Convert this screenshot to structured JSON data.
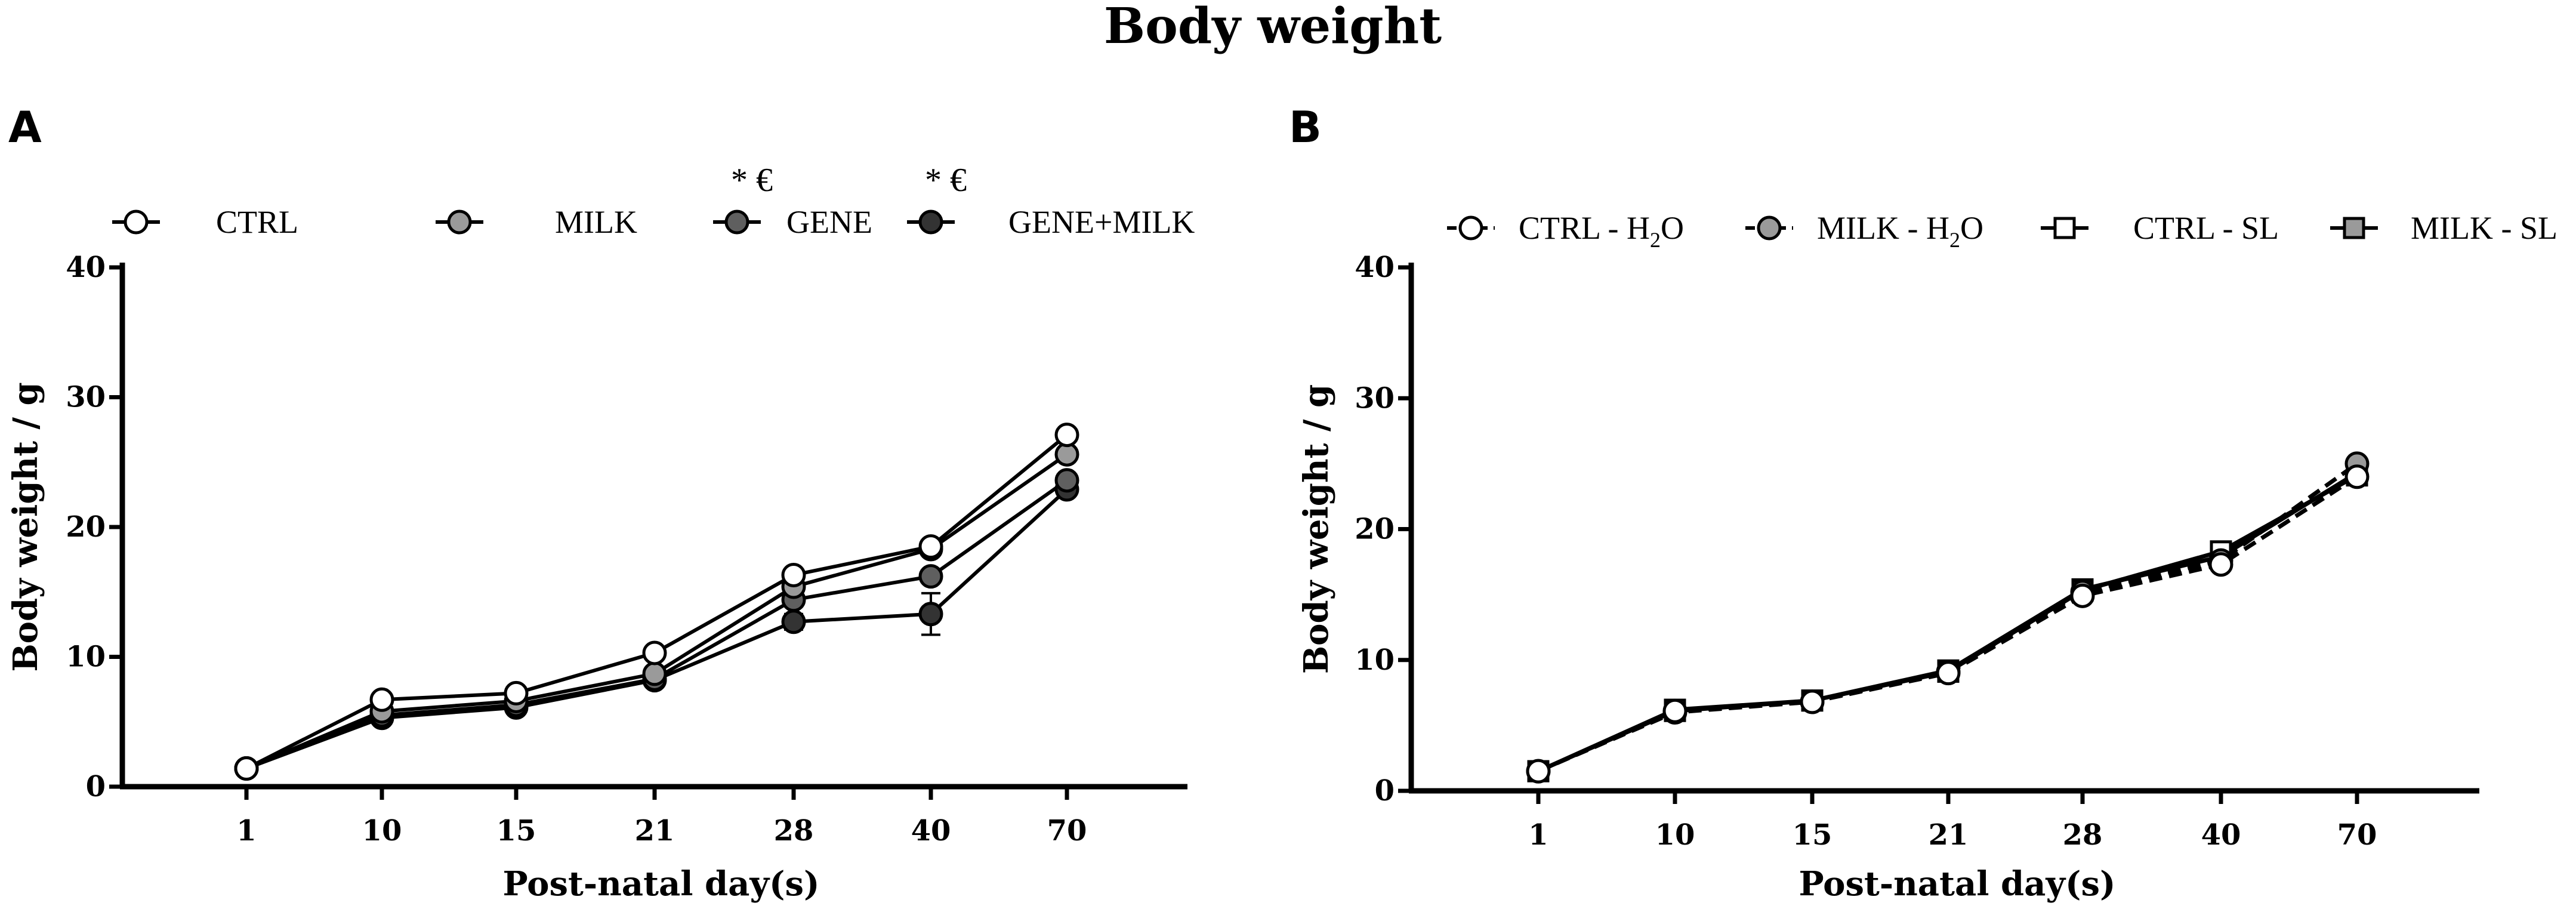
{
  "figure_title": "Body weight",
  "chart_data": [
    {
      "panel": "A",
      "type": "line",
      "categories": [
        "1",
        "10",
        "15",
        "21",
        "28",
        "40",
        "70"
      ],
      "xlabel": "Post-natal day(s)",
      "ylabel": "Body weight / g",
      "ylim": [
        0,
        40
      ],
      "yticks": [
        "0",
        "10",
        "20",
        "30",
        "40"
      ],
      "legend_position": "top",
      "series": [
        {
          "name": "CTRL",
          "marker": "circle",
          "fill": "#ffffff",
          "dashed": false,
          "significance": "",
          "values": [
            1.4,
            6.7,
            7.2,
            10.3,
            16.3,
            18.5,
            27.1
          ]
        },
        {
          "name": "MILK",
          "marker": "circle",
          "fill": "#9a9a9a",
          "dashed": false,
          "significance": "",
          "values": [
            1.4,
            5.8,
            6.6,
            8.7,
            15.4,
            18.3,
            25.6
          ]
        },
        {
          "name": "GENE",
          "marker": "circle",
          "fill": "#5f5f5f",
          "dashed": false,
          "significance": "* €",
          "values": [
            1.4,
            5.5,
            6.3,
            8.3,
            14.4,
            16.2,
            23.6
          ]
        },
        {
          "name": "GENE+MILK",
          "marker": "circle",
          "fill": "#333333",
          "dashed": false,
          "significance": "* €",
          "values": [
            1.4,
            5.3,
            6.1,
            8.2,
            12.7,
            13.3,
            22.9
          ],
          "errors": [
            0,
            0,
            0,
            0,
            0.6,
            1.6,
            0.5
          ]
        }
      ]
    },
    {
      "panel": "B",
      "type": "line",
      "categories": [
        "1",
        "10",
        "15",
        "21",
        "28",
        "40",
        "70"
      ],
      "xlabel": "Post-natal day(s)",
      "ylabel": "Body weight / g",
      "ylim": [
        0,
        40
      ],
      "yticks": [
        "0",
        "10",
        "20",
        "30",
        "40"
      ],
      "legend_position": "top",
      "series": [
        {
          "name": "CTRL - H2O",
          "legend_main": "CTRL - H",
          "legend_sub": "2",
          "legend_tail": "O",
          "marker": "circle",
          "fill": "#ffffff",
          "dashed": true,
          "values": [
            1.5,
            6.1,
            6.8,
            9.0,
            14.9,
            17.3,
            24.0
          ]
        },
        {
          "name": "MILK - H2O",
          "legend_main": "MILK - H",
          "legend_sub": "2",
          "legend_tail": "O",
          "marker": "circle",
          "fill": "#9a9a9a",
          "dashed": true,
          "values": [
            1.5,
            6.0,
            6.8,
            9.1,
            15.2,
            17.6,
            25.0
          ]
        },
        {
          "name": "CTRL - SL",
          "legend_main": "CTRL - SL",
          "legend_sub": "",
          "legend_tail": "",
          "marker": "square",
          "fill": "#ffffff",
          "dashed": false,
          "values": [
            1.5,
            6.2,
            6.9,
            9.1,
            15.3,
            18.3,
            24.1
          ]
        },
        {
          "name": "MILK - SL",
          "legend_main": "MILK - SL",
          "legend_sub": "",
          "legend_tail": "",
          "marker": "square",
          "fill": "#9a9a9a",
          "dashed": false,
          "values": [
            1.5,
            6.1,
            6.9,
            9.2,
            15.4,
            17.9,
            24.3
          ]
        }
      ]
    }
  ]
}
